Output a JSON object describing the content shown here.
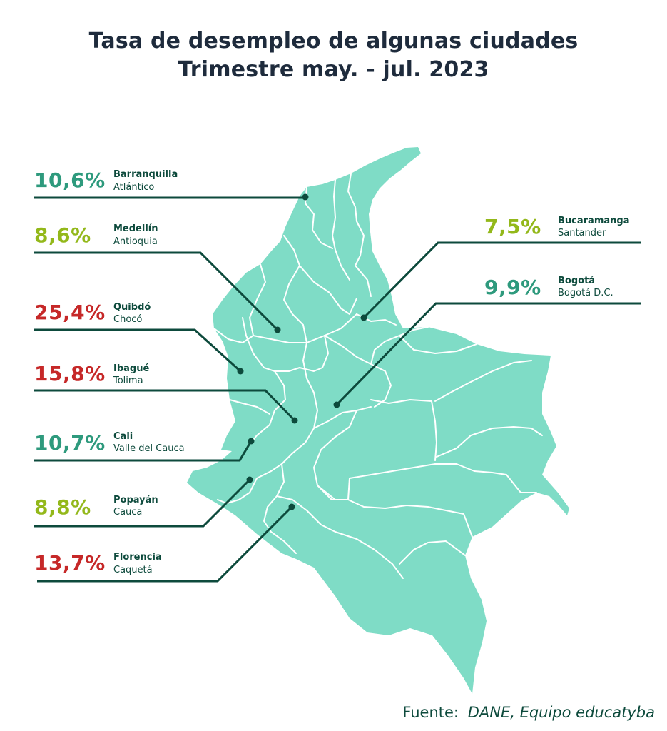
{
  "title": {
    "line1": "Tasa de desempleo de algunas ciudades",
    "line2": "Trimestre may. - jul. 2023"
  },
  "colors": {
    "map_fill": "#7fdcc6",
    "border": "#ffffff",
    "leader_line": "#0d4a3c",
    "high": "#c62828",
    "mid": "#2e9a7d",
    "low": "#93b81a",
    "text_dark": "#0d4a3c"
  },
  "cities": [
    {
      "rate": "10,6%",
      "city": "Barranquilla",
      "department": "Atlántico",
      "level": "mid"
    },
    {
      "rate": "8,6%",
      "city": "Medellín",
      "department": "Antioquia",
      "level": "low"
    },
    {
      "rate": "25,4%",
      "city": "Quibdó",
      "department": "Chocó",
      "level": "high"
    },
    {
      "rate": "15,8%",
      "city": "Ibagué",
      "department": "Tolima",
      "level": "high"
    },
    {
      "rate": "10,7%",
      "city": "Cali",
      "department": "Valle del Cauca",
      "level": "mid"
    },
    {
      "rate": "8,8%",
      "city": "Popayán",
      "department": "Cauca",
      "level": "low"
    },
    {
      "rate": "13,7%",
      "city": "Florencia",
      "department": "Caquetá",
      "level": "high"
    },
    {
      "rate": "7,5%",
      "city": "Bucaramanga",
      "department": "Santander",
      "level": "low"
    },
    {
      "rate": "9,9%",
      "city": "Bogotá",
      "department": "Bogotá D.C.",
      "level": "mid"
    }
  ],
  "source": {
    "label": "Fuente:",
    "text": "DANE, Equipo educatyba"
  }
}
